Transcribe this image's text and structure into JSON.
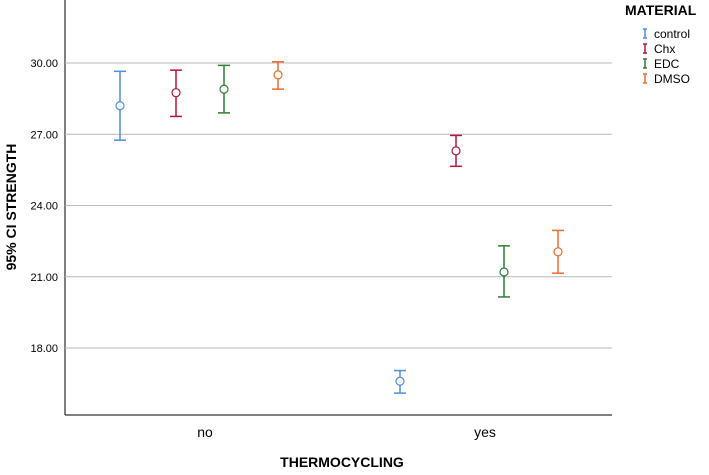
{
  "chart_data": {
    "type": "errorbar",
    "xlabel": "THERMOCYCLING",
    "ylabel": "95% CI STRENGTH",
    "categories": [
      "no",
      "yes"
    ],
    "ylim": [
      15.0,
      32.0
    ],
    "yticks": [
      18.0,
      21.0,
      24.0,
      27.0,
      30.0
    ],
    "ytick_labels": [
      "18.00",
      "21.00",
      "24.00",
      "27.00",
      "30.00"
    ],
    "grid": "horizontal",
    "legend": {
      "title": "MATERIAL",
      "position": "right"
    },
    "series": [
      {
        "name": "control",
        "color": "#4f8ee0",
        "mean": [
          28.2,
          16.6
        ],
        "lower": [
          26.75,
          16.1
        ],
        "upper": [
          29.65,
          17.05
        ]
      },
      {
        "name": "Chx",
        "color": "#b5153d",
        "mean": [
          28.75,
          26.3
        ],
        "lower": [
          27.75,
          25.65
        ],
        "upper": [
          29.7,
          26.95
        ]
      },
      {
        "name": "EDC",
        "color": "#2e7d32",
        "mean": [
          28.9,
          21.2
        ],
        "lower": [
          27.9,
          20.15
        ],
        "upper": [
          29.9,
          22.3
        ]
      },
      {
        "name": "DMSO",
        "color": "#ea6d2a",
        "mean": [
          29.5,
          22.05
        ],
        "lower": [
          28.9,
          21.15
        ],
        "upper": [
          30.05,
          22.95
        ]
      }
    ]
  }
}
